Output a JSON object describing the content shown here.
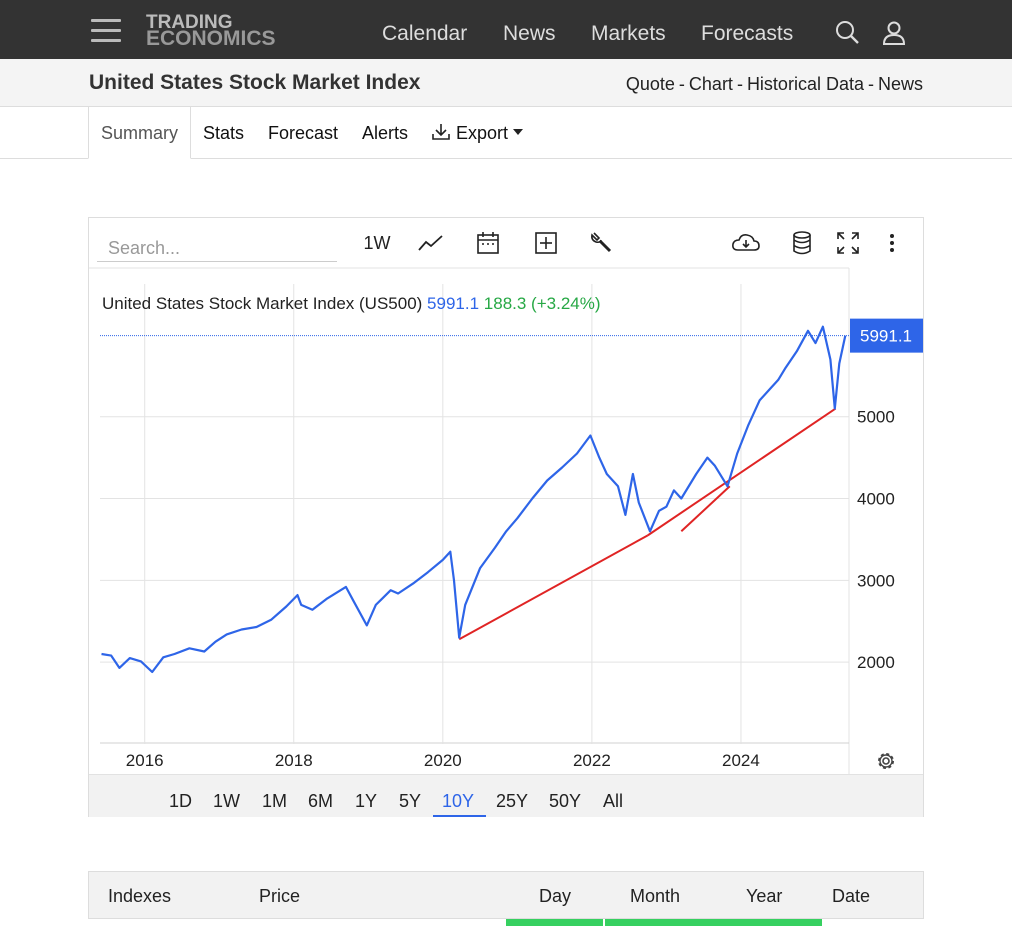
{
  "header": {
    "logo_line1": "TRADING",
    "logo_line2": "ECONOMICS",
    "nav": [
      "Calendar",
      "News",
      "Markets",
      "Forecasts"
    ],
    "icons": [
      "menu-icon",
      "search-icon",
      "user-icon"
    ]
  },
  "subheader": {
    "title": "United States Stock Market Index",
    "links": [
      "Quote",
      "Chart",
      "Historical Data",
      "News"
    ],
    "separator": "-"
  },
  "tabs": {
    "summary": "Summary",
    "stats": "Stats",
    "forecast": "Forecast",
    "alerts": "Alerts",
    "export": "Export"
  },
  "chart_toolbar": {
    "search_placeholder": "Search...",
    "interval": "1W",
    "icons": [
      "line-chart-icon",
      "calendar-icon",
      "add-icon",
      "wrench-icon",
      "cloud-download-icon",
      "database-icon",
      "fullscreen-icon",
      "more-icon"
    ]
  },
  "chart_data": {
    "type": "line",
    "legend": {
      "name": "United States Stock Market Index (US500)",
      "price": "5991.1",
      "change": "188.3 (+3.24%)"
    },
    "last_price_label": "5991.1",
    "x_ticks": [
      "2016",
      "2018",
      "2020",
      "2022",
      "2024"
    ],
    "y_ticks": [
      "2000",
      "3000",
      "4000",
      "5000"
    ],
    "ylim": [
      1000,
      6500
    ],
    "xlim": [
      2015.4,
      2025.45
    ],
    "grid": true,
    "colors": {
      "line": "#2e65e8",
      "trend": "#e02424",
      "up": "#27a845",
      "accent": "#2e65e8"
    },
    "series": [
      {
        "x": [
          2015.42,
          2015.55,
          2015.66,
          2015.8,
          2015.95,
          2016.1,
          2016.25,
          2016.4,
          2016.6,
          2016.8,
          2016.95,
          2017.1,
          2017.3,
          2017.5,
          2017.7,
          2017.9,
          2018.05,
          2018.1,
          2018.25,
          2018.45,
          2018.7,
          2018.8,
          2018.98,
          2019.1,
          2019.3,
          2019.4,
          2019.6,
          2019.8,
          2020.0,
          2020.1,
          2020.15,
          2020.22,
          2020.3,
          2020.5,
          2020.7,
          2020.85,
          2021.0,
          2021.2,
          2021.4,
          2021.6,
          2021.8,
          2021.98,
          2022.1,
          2022.2,
          2022.35,
          2022.45,
          2022.55,
          2022.63,
          2022.78,
          2022.9,
          2023.0,
          2023.1,
          2023.2,
          2023.4,
          2023.55,
          2023.65,
          2023.82,
          2023.95,
          2024.1,
          2024.25,
          2024.4,
          2024.5,
          2024.6,
          2024.75,
          2024.9,
          2025.0,
          2025.1,
          2025.2,
          2025.26,
          2025.32,
          2025.4
        ],
        "y": [
          2100,
          2080,
          1930,
          2050,
          2010,
          1880,
          2060,
          2100,
          2170,
          2130,
          2250,
          2340,
          2400,
          2430,
          2520,
          2680,
          2820,
          2700,
          2640,
          2780,
          2920,
          2750,
          2450,
          2700,
          2880,
          2840,
          2960,
          3100,
          3250,
          3350,
          3000,
          2300,
          2700,
          3150,
          3400,
          3600,
          3760,
          4000,
          4220,
          4380,
          4550,
          4770,
          4500,
          4300,
          4150,
          3800,
          4300,
          3950,
          3600,
          3850,
          3900,
          4100,
          4000,
          4300,
          4500,
          4400,
          4150,
          4550,
          4900,
          5200,
          5350,
          5450,
          5600,
          5800,
          6050,
          5900,
          6100,
          5700,
          5100,
          5650,
          5991.1
        ]
      }
    ],
    "trendlines": [
      {
        "x": [
          2020.22,
          2022.75
        ],
        "y": [
          2280,
          3550
        ]
      },
      {
        "x": [
          2022.75,
          2025.27
        ],
        "y": [
          3550,
          5100
        ]
      },
      {
        "x": [
          2023.2,
          2023.85
        ],
        "y": [
          3600,
          4150
        ]
      }
    ]
  },
  "ranges": [
    "1D",
    "1W",
    "1M",
    "6M",
    "1Y",
    "5Y",
    "10Y",
    "25Y",
    "50Y",
    "All"
  ],
  "active_range": "10Y",
  "table": {
    "headers": [
      "Indexes",
      "Price",
      "Day",
      "Month",
      "Year",
      "Date"
    ]
  }
}
